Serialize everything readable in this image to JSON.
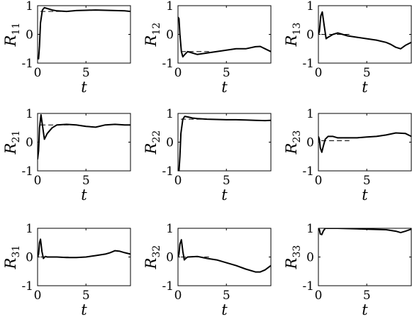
{
  "chart_data": {
    "type": "line",
    "grid": false,
    "xlabel": "t",
    "xlim": [
      0,
      9.6
    ],
    "ylim": [
      -1,
      1
    ],
    "xticks": [
      0,
      5
    ],
    "yticks": [
      -1,
      0,
      1
    ],
    "xtick_labels": [
      "0",
      "5"
    ],
    "ytick_labels": [
      "-1",
      "0",
      "1"
    ],
    "line_colors": {
      "estimate": "#000000",
      "reference": "#000000"
    },
    "line_styles": {
      "estimate": "solid",
      "reference": "dashed"
    },
    "panels": [
      {
        "ylabel": "R",
        "sub": "11",
        "reference": {
          "x": [
            0.3,
            3.2
          ],
          "y": [
            0.8,
            0.8
          ]
        },
        "estimate": {
          "x": [
            0,
            0.1,
            0.2,
            0.3,
            0.5,
            0.7,
            1.0,
            1.5,
            2,
            3,
            4,
            5,
            6,
            7,
            8,
            9,
            9.6
          ],
          "y": [
            -0.8,
            -0.85,
            -0.4,
            0.4,
            0.85,
            0.93,
            0.9,
            0.85,
            0.82,
            0.8,
            0.83,
            0.84,
            0.85,
            0.84,
            0.83,
            0.82,
            0.8
          ]
        }
      },
      {
        "ylabel": "R",
        "sub": "12",
        "reference": {
          "x": [
            0.3,
            3.2
          ],
          "y": [
            -0.6,
            -0.6
          ]
        },
        "estimate": {
          "x": [
            0,
            0.1,
            0.2,
            0.35,
            0.5,
            0.7,
            1.0,
            1.5,
            2,
            3,
            4,
            5,
            6,
            7,
            8,
            8.5,
            9,
            9.6
          ],
          "y": [
            0.6,
            0.55,
            0.0,
            -0.6,
            -0.78,
            -0.7,
            -0.6,
            -0.65,
            -0.7,
            -0.65,
            -0.6,
            -0.55,
            -0.5,
            -0.5,
            -0.43,
            -0.42,
            -0.5,
            -0.6
          ]
        }
      },
      {
        "ylabel": "R",
        "sub": "13",
        "reference": {
          "x": [
            0.3,
            3.2
          ],
          "y": [
            0.0,
            0.0
          ]
        },
        "estimate": {
          "x": [
            0,
            0.1,
            0.25,
            0.4,
            0.6,
            0.8,
            1.0,
            1.5,
            2,
            3,
            4,
            5,
            6,
            7,
            7.5,
            8,
            8.5,
            9,
            9.6
          ],
          "y": [
            0.0,
            0.1,
            0.65,
            0.78,
            0.3,
            -0.15,
            -0.1,
            0.0,
            0.05,
            -0.05,
            -0.1,
            -0.15,
            -0.2,
            -0.28,
            -0.35,
            -0.45,
            -0.5,
            -0.38,
            -0.28
          ]
        }
      },
      {
        "ylabel": "R",
        "sub": "21",
        "reference": {
          "x": [
            0.3,
            3.2
          ],
          "y": [
            0.6,
            0.6
          ]
        },
        "estimate": {
          "x": [
            0,
            0.1,
            0.2,
            0.35,
            0.5,
            0.7,
            1.0,
            1.5,
            2,
            3,
            4,
            5,
            6,
            7,
            8,
            9,
            9.6
          ],
          "y": [
            -0.6,
            -0.3,
            0.5,
            0.95,
            0.6,
            0.1,
            0.3,
            0.5,
            0.6,
            0.62,
            0.6,
            0.55,
            0.52,
            0.6,
            0.62,
            0.6,
            0.6
          ]
        }
      },
      {
        "ylabel": "R",
        "sub": "22",
        "reference": {
          "x": [
            0.3,
            3.2
          ],
          "y": [
            0.8,
            0.8
          ]
        },
        "estimate": {
          "x": [
            0,
            0.1,
            0.2,
            0.3,
            0.5,
            0.7,
            1.0,
            1.5,
            2,
            3,
            4,
            5,
            6,
            7,
            8,
            9,
            9.6
          ],
          "y": [
            -0.95,
            -1.0,
            -0.5,
            0.3,
            0.8,
            0.9,
            0.88,
            0.84,
            0.82,
            0.8,
            0.79,
            0.78,
            0.78,
            0.77,
            0.76,
            0.75,
            0.76
          ]
        }
      },
      {
        "ylabel": "R",
        "sub": "23",
        "reference": {
          "x": [
            0.3,
            3.2
          ],
          "y": [
            0.05,
            0.05
          ]
        },
        "estimate": {
          "x": [
            0,
            0.1,
            0.2,
            0.35,
            0.5,
            0.7,
            1.0,
            1.5,
            2,
            3,
            4,
            5,
            6,
            7,
            8,
            9,
            9.6
          ],
          "y": [
            0.2,
            0.1,
            -0.2,
            -0.35,
            -0.15,
            0.1,
            0.2,
            0.2,
            0.15,
            0.15,
            0.15,
            0.18,
            0.2,
            0.25,
            0.32,
            0.3,
            0.2
          ]
        }
      },
      {
        "ylabel": "R",
        "sub": "31",
        "reference": {
          "x": [
            0.3,
            3.2
          ],
          "y": [
            0.0,
            0.0
          ]
        },
        "estimate": {
          "x": [
            0,
            0.1,
            0.2,
            0.3,
            0.45,
            0.6,
            0.8,
            1.0,
            2,
            3,
            4,
            5,
            6,
            7,
            7.5,
            8,
            8.5,
            9,
            9.6
          ],
          "y": [
            0.0,
            0.1,
            0.5,
            0.62,
            0.2,
            -0.05,
            0.02,
            0.0,
            0.0,
            -0.02,
            -0.02,
            0.0,
            0.05,
            0.1,
            0.15,
            0.22,
            0.2,
            0.15,
            0.1
          ]
        }
      },
      {
        "ylabel": "R",
        "sub": "32",
        "reference": {
          "x": [
            0.3,
            3.2
          ],
          "y": [
            0.0,
            0.0
          ]
        },
        "estimate": {
          "x": [
            0,
            0.1,
            0.2,
            0.35,
            0.5,
            0.65,
            0.8,
            1.0,
            2,
            3,
            4,
            5,
            6,
            7,
            8,
            8.5,
            9,
            9.6
          ],
          "y": [
            0.0,
            0.1,
            0.45,
            0.6,
            0.2,
            -0.1,
            -0.05,
            0.0,
            0.02,
            -0.05,
            -0.1,
            -0.2,
            -0.3,
            -0.42,
            -0.52,
            -0.52,
            -0.45,
            -0.3
          ]
        }
      },
      {
        "ylabel": "R",
        "sub": "33",
        "reference": {
          "x": [
            0.3,
            3.2
          ],
          "y": [
            1.0,
            1.0
          ]
        },
        "estimate": {
          "x": [
            0,
            0.1,
            0.2,
            0.35,
            0.5,
            0.7,
            1.0,
            2,
            3,
            4,
            5,
            6,
            7,
            8,
            8.5,
            9,
            9.6
          ],
          "y": [
            1.0,
            0.95,
            0.8,
            0.78,
            0.9,
            1.0,
            1.0,
            1.0,
            0.99,
            0.98,
            0.97,
            0.96,
            0.95,
            0.9,
            0.85,
            0.9,
            0.97
          ]
        }
      }
    ]
  }
}
